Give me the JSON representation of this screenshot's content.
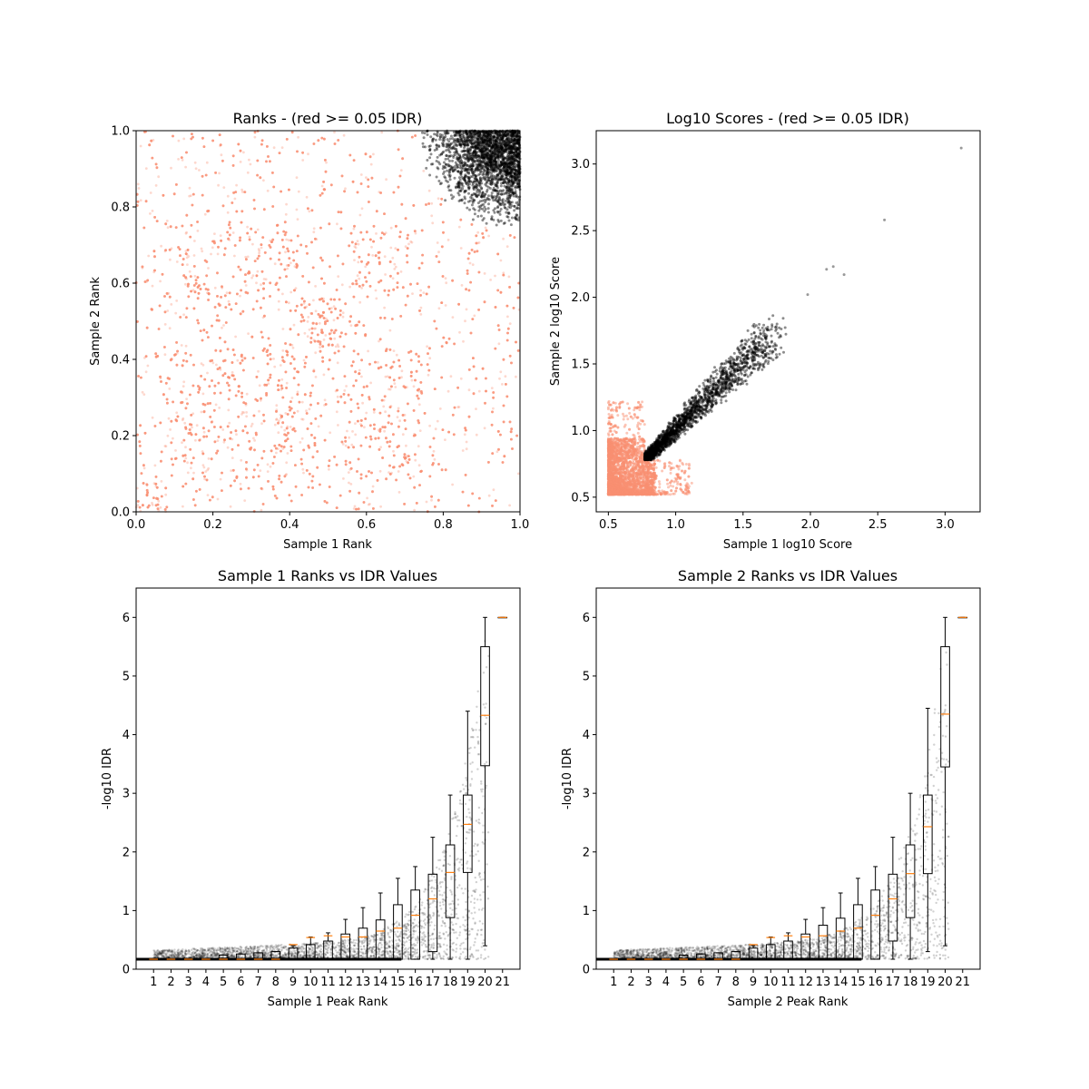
{
  "chart_data": [
    {
      "type": "scatter",
      "title": "Ranks - (red >= 0.05 IDR)",
      "xlabel": "Sample 1 Rank",
      "ylabel": "Sample 2 Rank",
      "xlim": [
        0,
        1
      ],
      "ylim": [
        0,
        1
      ],
      "xticks": [
        "0.0",
        "0.2",
        "0.4",
        "0.6",
        "0.8",
        "1.0"
      ],
      "yticks": [
        "0.0",
        "0.2",
        "0.4",
        "0.6",
        "0.8",
        "1.0"
      ],
      "colors": {
        "above_threshold": "#fa8f72",
        "below_threshold": "#000000"
      },
      "series": [
        {
          "description_value": "red",
          "region": "rank blocks, points spread over full [0,1] square with dense blocks e.g. x 0-0.08 / y 0-0.08, x 0.43-0.56 / y 0.42-0.56",
          "approx_count": 9000
        },
        {
          "description_value": "black",
          "region": "cluster near (1,1): x 0.73-1.0, y 0.73-1.0",
          "approx_count": 2500
        }
      ],
      "grid": false
    },
    {
      "type": "scatter",
      "title": "Log10 Scores - (red >= 0.05 IDR)",
      "xlabel": "Sample 1 log10 Score",
      "ylabel": "Sample 2 log10 Score",
      "xlim": [
        0.41,
        3.26
      ],
      "ylim": [
        0.39,
        3.25
      ],
      "xticks": [
        "0.5",
        "1.0",
        "1.5",
        "2.0",
        "2.5",
        "3.0"
      ],
      "yticks": [
        "0.5",
        "1.0",
        "1.5",
        "2.0",
        "2.5",
        "3.0"
      ],
      "colors": {
        "above_threshold": "#fa8f72",
        "below_threshold": "#000000"
      },
      "series": [
        {
          "description_value": "red",
          "x_range": [
            0.5,
            1.12
          ],
          "y_range": [
            0.52,
            1.22
          ]
        },
        {
          "description_value": "black",
          "x_range": [
            0.76,
            3.12
          ],
          "y_range": [
            0.78,
            3.12
          ]
        }
      ],
      "outliers": [
        [
          3.12,
          3.12
        ],
        [
          2.55,
          2.58
        ],
        [
          2.17,
          2.23
        ],
        [
          2.25,
          2.17
        ],
        [
          2.12,
          2.21
        ],
        [
          1.98,
          2.02
        ]
      ],
      "grid": false
    },
    {
      "type": "box",
      "title": "Sample 1 Ranks vs IDR Values",
      "xlabel": "Sample 1 Peak Rank",
      "ylabel": "-log10 IDR",
      "ylim": [
        0,
        6.5
      ],
      "yticks": [
        "0",
        "1",
        "2",
        "3",
        "4",
        "5",
        "6"
      ],
      "categories": [
        "1",
        "2",
        "3",
        "4",
        "5",
        "6",
        "7",
        "8",
        "9",
        "10",
        "11",
        "12",
        "13",
        "14",
        "15",
        "16",
        "17",
        "18",
        "19",
        "20",
        "21"
      ],
      "medians": [
        0.17,
        0.17,
        0.17,
        0.17,
        0.17,
        0.17,
        0.17,
        0.17,
        0.42,
        0.54,
        0.57,
        0.55,
        0.55,
        0.65,
        0.7,
        0.92,
        1.2,
        1.65,
        2.47,
        4.33,
        6.0
      ],
      "q1": [
        0.17,
        0.17,
        0.17,
        0.17,
        0.17,
        0.17,
        0.17,
        0.17,
        0.17,
        0.17,
        0.17,
        0.17,
        0.17,
        0.17,
        0.17,
        0.17,
        0.3,
        0.88,
        1.65,
        3.47,
        6.0
      ],
      "q3": [
        0.17,
        0.17,
        0.17,
        0.17,
        0.24,
        0.26,
        0.28,
        0.3,
        0.36,
        0.42,
        0.48,
        0.6,
        0.7,
        0.84,
        1.1,
        1.35,
        1.62,
        2.12,
        2.97,
        5.5,
        6.0
      ],
      "whisker_low": [
        0.17,
        0.17,
        0.17,
        0.17,
        0.17,
        0.17,
        0.17,
        0.17,
        0.17,
        0.17,
        0.17,
        0.17,
        0.17,
        0.17,
        0.17,
        0.17,
        0.17,
        0.17,
        0.17,
        0.4,
        6.0
      ],
      "whisker_high": [
        0.17,
        0.17,
        0.17,
        0.17,
        0.24,
        0.26,
        0.28,
        0.3,
        0.4,
        0.55,
        0.62,
        0.85,
        1.05,
        1.3,
        1.55,
        1.75,
        2.25,
        2.97,
        4.4,
        6.0,
        6.0
      ],
      "grid": false
    },
    {
      "type": "box",
      "title": "Sample 2 Ranks vs IDR Values",
      "xlabel": "Sample 2 Peak Rank",
      "ylabel": "-log10 IDR",
      "ylim": [
        0,
        6.5
      ],
      "yticks": [
        "0",
        "1",
        "2",
        "3",
        "4",
        "5",
        "6"
      ],
      "categories": [
        "1",
        "2",
        "3",
        "4",
        "5",
        "6",
        "7",
        "8",
        "9",
        "10",
        "11",
        "12",
        "13",
        "14",
        "15",
        "16",
        "17",
        "18",
        "19",
        "20",
        "21"
      ],
      "medians": [
        0.17,
        0.17,
        0.17,
        0.17,
        0.17,
        0.17,
        0.17,
        0.17,
        0.42,
        0.54,
        0.57,
        0.55,
        0.57,
        0.65,
        0.7,
        0.92,
        1.2,
        1.63,
        2.43,
        4.35,
        6.0
      ],
      "q1": [
        0.17,
        0.17,
        0.17,
        0.17,
        0.17,
        0.17,
        0.17,
        0.17,
        0.17,
        0.17,
        0.17,
        0.17,
        0.17,
        0.17,
        0.17,
        0.17,
        0.48,
        0.88,
        1.63,
        3.45,
        6.0
      ],
      "q3": [
        0.17,
        0.17,
        0.17,
        0.17,
        0.24,
        0.26,
        0.28,
        0.3,
        0.36,
        0.42,
        0.48,
        0.6,
        0.75,
        0.87,
        1.1,
        1.35,
        1.62,
        2.12,
        2.97,
        5.5,
        6.0
      ],
      "whisker_low": [
        0.17,
        0.17,
        0.17,
        0.17,
        0.17,
        0.17,
        0.17,
        0.17,
        0.17,
        0.17,
        0.17,
        0.17,
        0.17,
        0.17,
        0.17,
        0.17,
        0.17,
        0.17,
        0.3,
        0.4,
        6.0
      ],
      "whisker_high": [
        0.17,
        0.17,
        0.17,
        0.17,
        0.24,
        0.26,
        0.28,
        0.3,
        0.4,
        0.55,
        0.62,
        0.85,
        1.05,
        1.3,
        1.55,
        1.75,
        2.25,
        3.0,
        4.45,
        6.0,
        6.0
      ],
      "grid": false
    }
  ]
}
